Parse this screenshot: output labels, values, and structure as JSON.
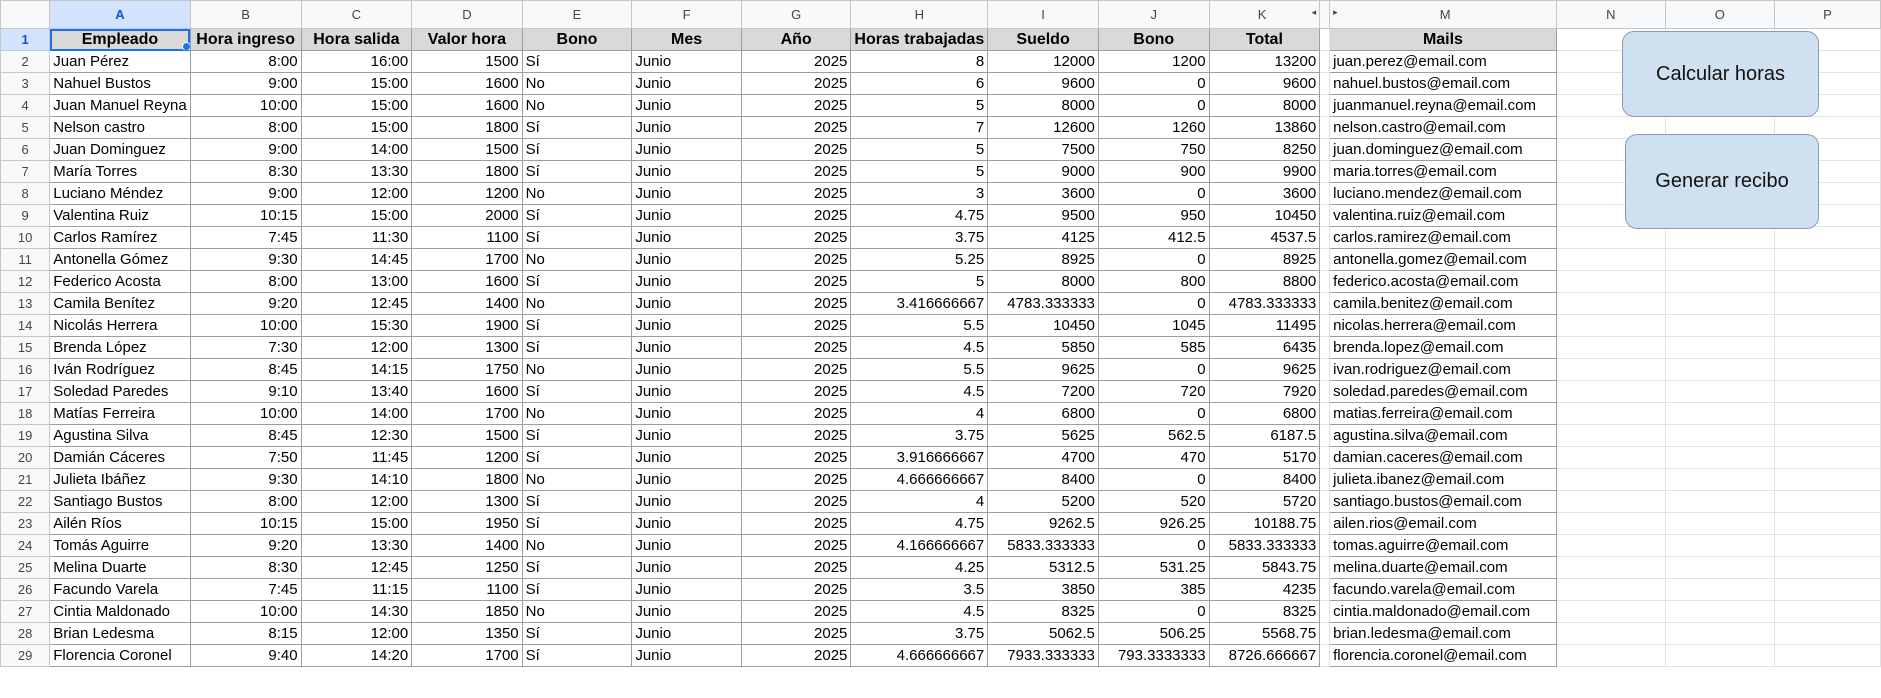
{
  "columns": [
    "A",
    "B",
    "C",
    "D",
    "E",
    "F",
    "G",
    "H",
    "I",
    "J",
    "K",
    "",
    "M",
    "N",
    "O",
    "P"
  ],
  "headers": [
    "Empleado",
    "Hora ingreso",
    "Hora salida",
    "Valor hora",
    "Bono",
    "Mes",
    "Año",
    "Horas trabajadas",
    "Sueldo",
    "Bono",
    "Total",
    "Mails"
  ],
  "rows": [
    [
      "Juan Pérez",
      "8:00",
      "16:00",
      "1500",
      "Sí",
      "Junio",
      "2025",
      "8",
      "12000",
      "1200",
      "13200",
      "juan.perez@email.com"
    ],
    [
      "Nahuel Bustos",
      "9:00",
      "15:00",
      "1600",
      "No",
      "Junio",
      "2025",
      "6",
      "9600",
      "0",
      "9600",
      "nahuel.bustos@email.com"
    ],
    [
      "Juan Manuel Reyna",
      "10:00",
      "15:00",
      "1600",
      "No",
      "Junio",
      "2025",
      "5",
      "8000",
      "0",
      "8000",
      "juanmanuel.reyna@email.com"
    ],
    [
      "Nelson castro",
      "8:00",
      "15:00",
      "1800",
      "Sí",
      "Junio",
      "2025",
      "7",
      "12600",
      "1260",
      "13860",
      "nelson.castro@email.com"
    ],
    [
      "Juan Dominguez",
      "9:00",
      "14:00",
      "1500",
      "Sí",
      "Junio",
      "2025",
      "5",
      "7500",
      "750",
      "8250",
      "juan.dominguez@email.com"
    ],
    [
      "María Torres",
      "8:30",
      "13:30",
      "1800",
      "Sí",
      "Junio",
      "2025",
      "5",
      "9000",
      "900",
      "9900",
      "maria.torres@email.com"
    ],
    [
      "Luciano Méndez",
      "9:00",
      "12:00",
      "1200",
      "No",
      "Junio",
      "2025",
      "3",
      "3600",
      "0",
      "3600",
      "luciano.mendez@email.com"
    ],
    [
      "Valentina Ruiz",
      "10:15",
      "15:00",
      "2000",
      "Sí",
      "Junio",
      "2025",
      "4.75",
      "9500",
      "950",
      "10450",
      "valentina.ruiz@email.com"
    ],
    [
      "Carlos Ramírez",
      "7:45",
      "11:30",
      "1100",
      "Sí",
      "Junio",
      "2025",
      "3.75",
      "4125",
      "412.5",
      "4537.5",
      "carlos.ramirez@email.com"
    ],
    [
      "Antonella Gómez",
      "9:30",
      "14:45",
      "1700",
      "No",
      "Junio",
      "2025",
      "5.25",
      "8925",
      "0",
      "8925",
      "antonella.gomez@email.com"
    ],
    [
      "Federico Acosta",
      "8:00",
      "13:00",
      "1600",
      "Sí",
      "Junio",
      "2025",
      "5",
      "8000",
      "800",
      "8800",
      "federico.acosta@email.com"
    ],
    [
      "Camila Benítez",
      "9:20",
      "12:45",
      "1400",
      "No",
      "Junio",
      "2025",
      "3.416666667",
      "4783.333333",
      "0",
      "4783.333333",
      "camila.benitez@email.com"
    ],
    [
      "Nicolás Herrera",
      "10:00",
      "15:30",
      "1900",
      "Sí",
      "Junio",
      "2025",
      "5.5",
      "10450",
      "1045",
      "11495",
      "nicolas.herrera@email.com"
    ],
    [
      "Brenda López",
      "7:30",
      "12:00",
      "1300",
      "Sí",
      "Junio",
      "2025",
      "4.5",
      "5850",
      "585",
      "6435",
      "brenda.lopez@email.com"
    ],
    [
      "Iván Rodríguez",
      "8:45",
      "14:15",
      "1750",
      "No",
      "Junio",
      "2025",
      "5.5",
      "9625",
      "0",
      "9625",
      "ivan.rodriguez@email.com"
    ],
    [
      "Soledad Paredes",
      "9:10",
      "13:40",
      "1600",
      "Sí",
      "Junio",
      "2025",
      "4.5",
      "7200",
      "720",
      "7920",
      "soledad.paredes@email.com"
    ],
    [
      "Matías Ferreira",
      "10:00",
      "14:00",
      "1700",
      "No",
      "Junio",
      "2025",
      "4",
      "6800",
      "0",
      "6800",
      "matias.ferreira@email.com"
    ],
    [
      "Agustina Silva",
      "8:45",
      "12:30",
      "1500",
      "Sí",
      "Junio",
      "2025",
      "3.75",
      "5625",
      "562.5",
      "6187.5",
      "agustina.silva@email.com"
    ],
    [
      "Damián Cáceres",
      "7:50",
      "11:45",
      "1200",
      "Sí",
      "Junio",
      "2025",
      "3.916666667",
      "4700",
      "470",
      "5170",
      "damian.caceres@email.com"
    ],
    [
      "Julieta Ibáñez",
      "9:30",
      "14:10",
      "1800",
      "No",
      "Junio",
      "2025",
      "4.666666667",
      "8400",
      "0",
      "8400",
      "julieta.ibanez@email.com"
    ],
    [
      "Santiago Bustos",
      "8:00",
      "12:00",
      "1300",
      "Sí",
      "Junio",
      "2025",
      "4",
      "5200",
      "520",
      "5720",
      "santiago.bustos@email.com"
    ],
    [
      "Ailén Ríos",
      "10:15",
      "15:00",
      "1950",
      "Sí",
      "Junio",
      "2025",
      "4.75",
      "9262.5",
      "926.25",
      "10188.75",
      "ailen.rios@email.com"
    ],
    [
      "Tomás Aguirre",
      "9:20",
      "13:30",
      "1400",
      "No",
      "Junio",
      "2025",
      "4.166666667",
      "5833.333333",
      "0",
      "5833.333333",
      "tomas.aguirre@email.com"
    ],
    [
      "Melina Duarte",
      "8:30",
      "12:45",
      "1250",
      "Sí",
      "Junio",
      "2025",
      "4.25",
      "5312.5",
      "531.25",
      "5843.75",
      "melina.duarte@email.com"
    ],
    [
      "Facundo Varela",
      "7:45",
      "11:15",
      "1100",
      "Sí",
      "Junio",
      "2025",
      "3.5",
      "3850",
      "385",
      "4235",
      "facundo.varela@email.com"
    ],
    [
      "Cintia Maldonado",
      "10:00",
      "14:30",
      "1850",
      "No",
      "Junio",
      "2025",
      "4.5",
      "8325",
      "0",
      "8325",
      "cintia.maldonado@email.com"
    ],
    [
      "Brian Ledesma",
      "8:15",
      "12:00",
      "1350",
      "Sí",
      "Junio",
      "2025",
      "3.75",
      "5062.5",
      "506.25",
      "5568.75",
      "brian.ledesma@email.com"
    ],
    [
      "Florencia Coronel",
      "9:40",
      "14:20",
      "1700",
      "Sí",
      "Junio",
      "2025",
      "4.666666667",
      "7933.333333",
      "793.3333333",
      "8726.666667",
      "florencia.coronel@email.com"
    ]
  ],
  "buttons": {
    "calcular": "Calcular horas",
    "generar": "Generar recibo"
  }
}
